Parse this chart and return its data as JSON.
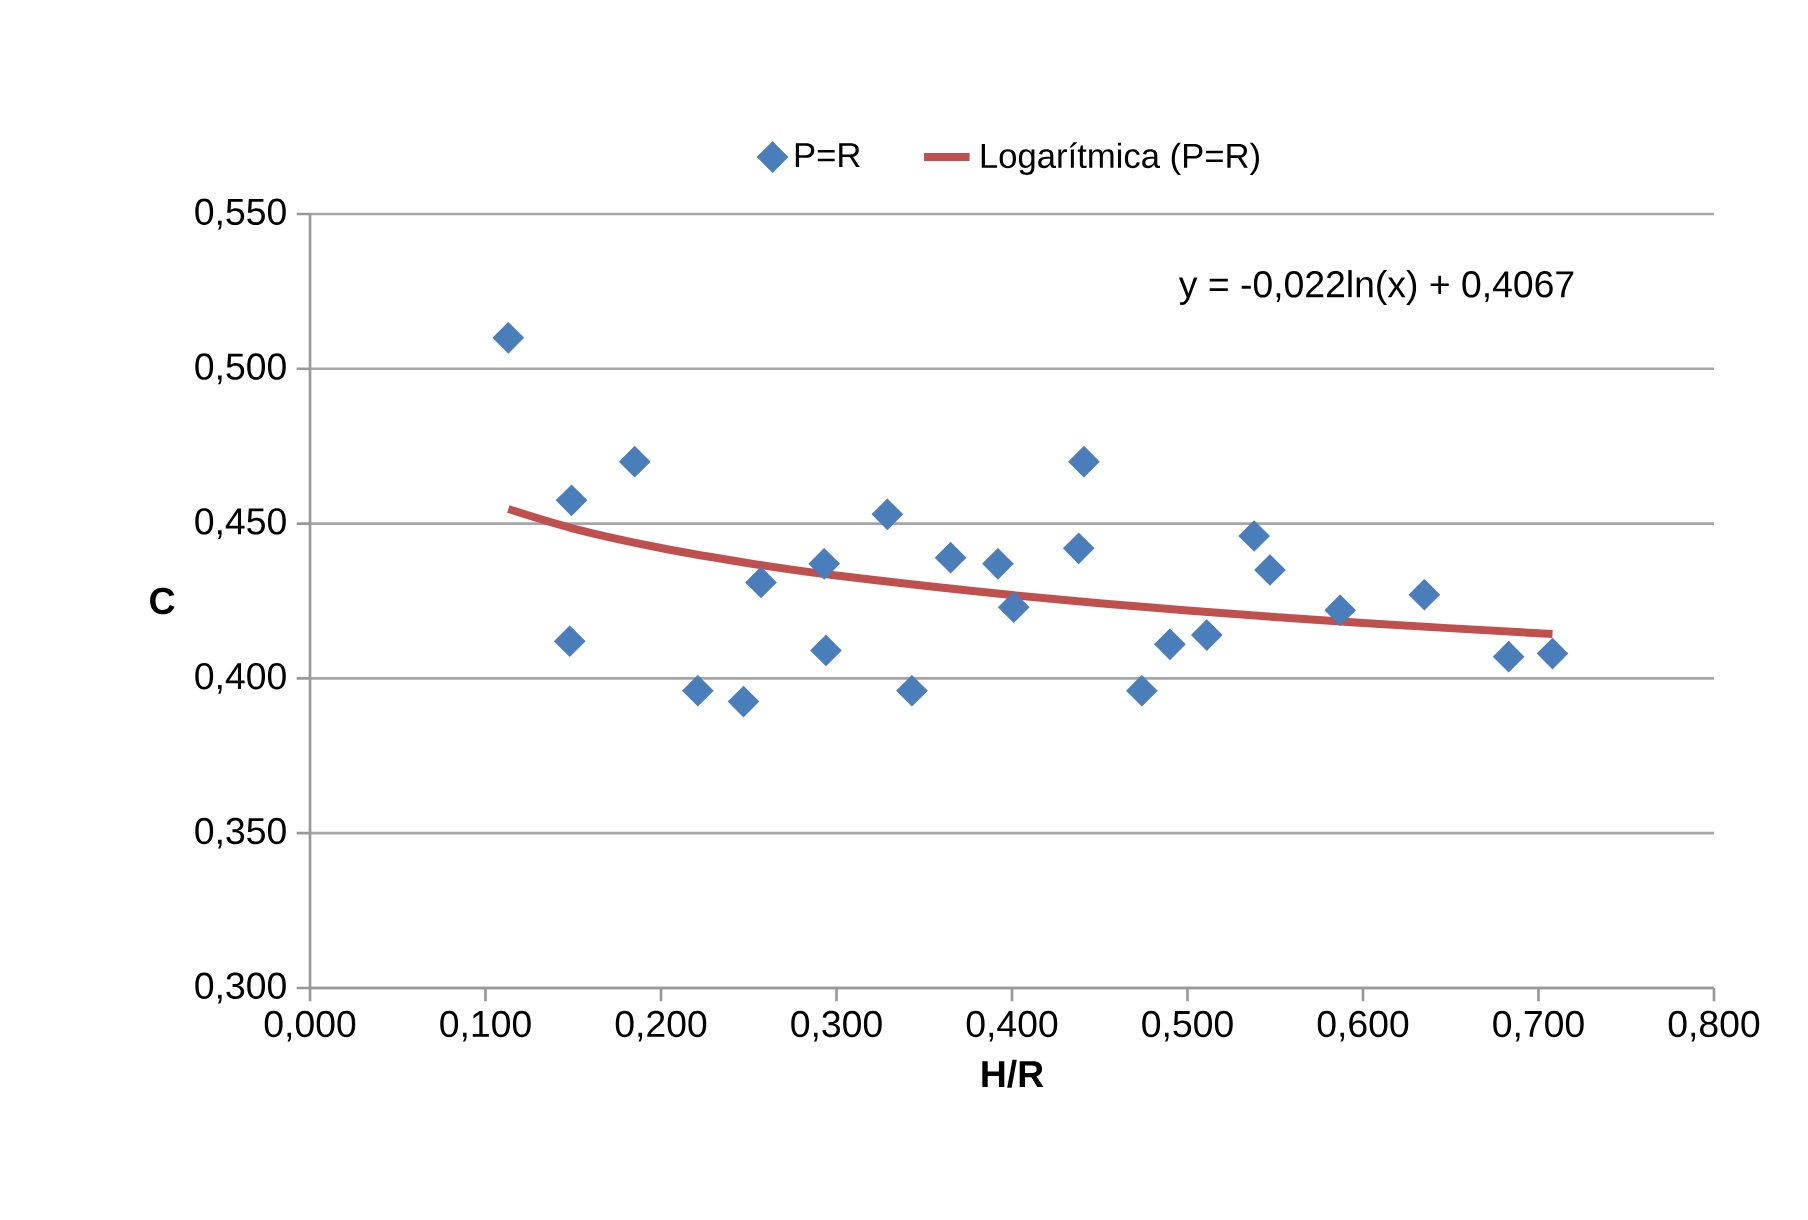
{
  "chart_data": {
    "type": "scatter",
    "xlabel": "H/R",
    "ylabel": "C",
    "xlim": [
      0,
      0.8
    ],
    "ylim": [
      0.3,
      0.55
    ],
    "xticks": [
      {
        "value": 0,
        "label": "0,000"
      },
      {
        "value": 0.1,
        "label": "0,100"
      },
      {
        "value": 0.2,
        "label": "0,200"
      },
      {
        "value": 0.3,
        "label": "0,300"
      },
      {
        "value": 0.4,
        "label": "0,400"
      },
      {
        "value": 0.5,
        "label": "0,500"
      },
      {
        "value": 0.6,
        "label": "0,600"
      },
      {
        "value": 0.7,
        "label": "0,700"
      },
      {
        "value": 0.8,
        "label": "0,800"
      }
    ],
    "yticks": [
      {
        "value": 0.3,
        "label": "0,300"
      },
      {
        "value": 0.35,
        "label": "0,350"
      },
      {
        "value": 0.4,
        "label": "0,400"
      },
      {
        "value": 0.45,
        "label": "0,450"
      },
      {
        "value": 0.5,
        "label": "0,500"
      },
      {
        "value": 0.55,
        "label": "0,550"
      }
    ],
    "grid": "y",
    "legend": "top",
    "annotations": [
      "y = -0,022ln(x) + 0,4067"
    ],
    "series": [
      {
        "name": "P=R",
        "marker": "diamond",
        "color": "#4a7ebb",
        "x": [
          0.113,
          0.149,
          0.148,
          0.185,
          0.221,
          0.247,
          0.257,
          0.293,
          0.294,
          0.329,
          0.343,
          0.365,
          0.392,
          0.401,
          0.441,
          0.438,
          0.474,
          0.49,
          0.511,
          0.538,
          0.547,
          0.587,
          0.635,
          0.683,
          0.708
        ],
        "values": [
          0.51,
          0.4575,
          0.412,
          0.47,
          0.396,
          0.3925,
          0.431,
          0.437,
          0.409,
          0.453,
          0.396,
          0.439,
          0.437,
          0.423,
          0.47,
          0.442,
          0.396,
          0.411,
          0.414,
          0.446,
          0.435,
          0.422,
          0.427,
          0.407,
          0.408
        ]
      },
      {
        "name": "Logarítmica (P=R)",
        "type": "line",
        "marker": "none",
        "line_style": "solid",
        "color": "#c0504d",
        "x": [
          0.113,
          0.15,
          0.2,
          0.25,
          0.3,
          0.4,
          0.5,
          0.6,
          0.708
        ],
        "values": [
          0.4547,
          0.4484,
          0.4421,
          0.4372,
          0.4332,
          0.4269,
          0.4219,
          0.4179,
          0.4143
        ]
      }
    ]
  }
}
